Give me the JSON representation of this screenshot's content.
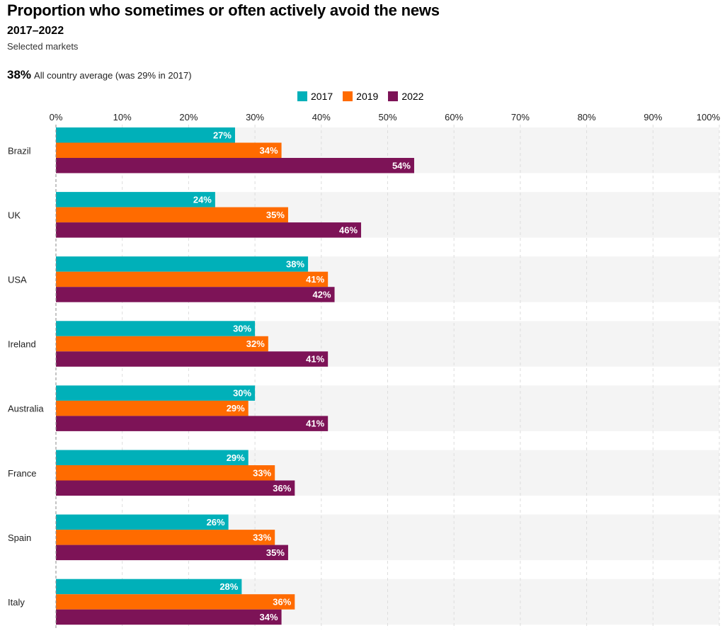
{
  "title": "Proportion who sometimes or often actively avoid the news",
  "subtitle": "2017–2022",
  "note": "Selected markets",
  "average": {
    "value": "38%",
    "text": "All country average (was 29% in 2017)"
  },
  "colors": {
    "2017": "#00b0b9",
    "2019": "#ff6b00",
    "2022": "#7d1357",
    "band": "#f4f4f4",
    "grid": "#dddddd"
  },
  "legend": [
    {
      "label": "2017",
      "color": "#00b0b9"
    },
    {
      "label": "2019",
      "color": "#ff6b00"
    },
    {
      "label": "2022",
      "color": "#7d1357"
    }
  ],
  "chart_data": {
    "type": "bar",
    "orientation": "horizontal",
    "categories": [
      "Brazil",
      "UK",
      "USA",
      "Ireland",
      "Australia",
      "France",
      "Spain",
      "Italy"
    ],
    "series": [
      {
        "name": "2017",
        "color": "#00b0b9",
        "values": [
          27,
          24,
          38,
          30,
          30,
          29,
          26,
          28
        ]
      },
      {
        "name": "2019",
        "color": "#ff6b00",
        "values": [
          34,
          35,
          41,
          32,
          29,
          33,
          33,
          36
        ]
      },
      {
        "name": "2022",
        "color": "#7d1357",
        "values": [
          54,
          46,
          42,
          41,
          41,
          36,
          35,
          34
        ]
      }
    ],
    "xlim": [
      0,
      100
    ],
    "xticks": [
      "0%",
      "10%",
      "20%",
      "30%",
      "40%",
      "50%",
      "60%",
      "70%",
      "80%",
      "90%",
      "100%"
    ],
    "grid": true,
    "legend_position": "top-center",
    "data_labels": true
  }
}
